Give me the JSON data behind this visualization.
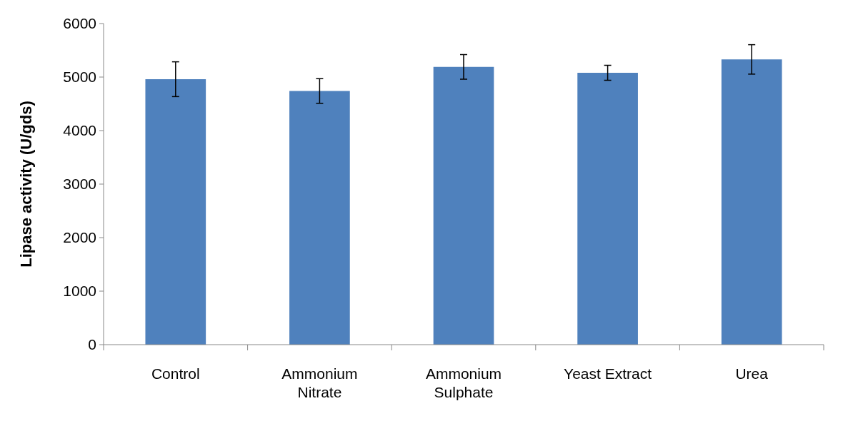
{
  "chart_data": {
    "type": "bar",
    "ylabel": "Lipase activity (U/gds)",
    "categories": [
      "Control",
      "Ammonium Nitrate",
      "Ammonium Sulphate",
      "Yeast Extract",
      "Urea"
    ],
    "values": [
      4960,
      4740,
      5190,
      5080,
      5330
    ],
    "errors": [
      325,
      230,
      230,
      140,
      275
    ],
    "color": "#4f81bd",
    "ylim": [
      0,
      6000
    ],
    "yticks": [
      0,
      1000,
      2000,
      3000,
      4000,
      5000,
      6000
    ],
    "grid": false
  }
}
